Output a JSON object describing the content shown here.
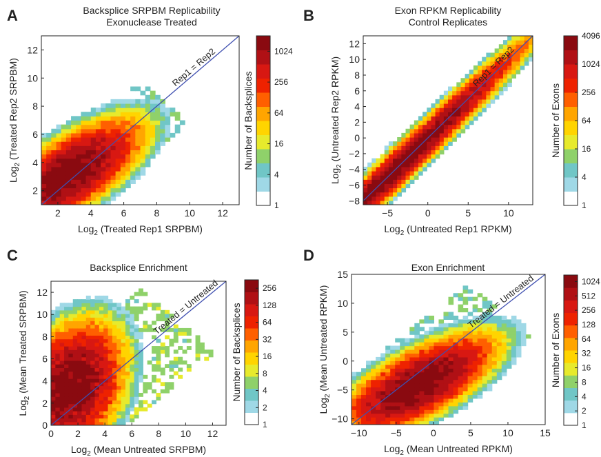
{
  "colormap": [
    "#ffffff",
    "#9fd8e6",
    "#70c6c6",
    "#8fd16a",
    "#e7ea2c",
    "#ffd400",
    "#ffa500",
    "#ff5f00",
    "#ee2200",
    "#d81812",
    "#b01015",
    "#8a0a10"
  ],
  "diagonal_color": "#3f4fb0",
  "chart_data": [
    {
      "panel": "A",
      "type": "heatmap",
      "title": [
        "Backsplice SRPBM Replicability",
        "Exonuclease Treated"
      ],
      "xlabel": "Log2 (Treated Rep1 SRPBM)",
      "ylabel": "Log2 (Treated Rep2 SRPBM)",
      "xlim": [
        1,
        13
      ],
      "ylim": [
        1,
        13
      ],
      "xticks": [
        2,
        4,
        6,
        8,
        10,
        12
      ],
      "yticks": [
        2,
        4,
        6,
        8,
        10,
        12
      ],
      "diagonal_label": "Rep1 = Rep2",
      "colorbar": {
        "label": "Number of Backsplices",
        "ticks": [
          "1",
          "4",
          "16",
          "64",
          "256",
          "1024"
        ],
        "max": 2048
      },
      "density": {
        "center": [
          2.7,
          3.2
        ],
        "spread": [
          1.6,
          1.4
        ],
        "corr": 0.7,
        "peak": 2048,
        "range": 5.5,
        "band": 2.3
      }
    },
    {
      "panel": "B",
      "type": "heatmap",
      "title": [
        "Exon RPKM Replicability",
        "Control Replicates"
      ],
      "xlabel": "Log2 (Untreated Rep1 RPKM)",
      "ylabel": "Log2 (Untreated Rep2 RPKM)",
      "xlim": [
        -8,
        13
      ],
      "ylim": [
        -8.5,
        13
      ],
      "xticks": [
        -5,
        0,
        5,
        10
      ],
      "yticks": [
        -8,
        -6,
        -4,
        -2,
        0,
        2,
        4,
        6,
        8,
        10,
        12
      ],
      "diagonal_label": "Rep1 = Rep2",
      "colorbar": {
        "label": "Number of Exons",
        "ticks": [
          "1",
          "4",
          "16",
          "64",
          "256",
          "1024",
          "4096"
        ],
        "max": 4096
      },
      "density": {
        "center": [
          -3,
          -3
        ],
        "spread": [
          5.5,
          5.5
        ],
        "corr": 0.985,
        "peak": 4096,
        "range": 14,
        "band": 1.6
      }
    },
    {
      "panel": "C",
      "type": "heatmap",
      "title": [
        "Backsplice Enrichment"
      ],
      "xlabel": "Log2 (Mean Untreated SRPBM)",
      "ylabel": "Log2 (Mean Treated SRPBM)",
      "xlim": [
        0,
        13
      ],
      "ylim": [
        0,
        13
      ],
      "xticks": [
        0,
        2,
        4,
        6,
        8,
        10,
        12
      ],
      "yticks": [
        0,
        2,
        4,
        6,
        8,
        10,
        12
      ],
      "diagonal_label": "Treated = Untreated",
      "colorbar": {
        "label": "Number of Backsplices",
        "ticks": [
          "1",
          "2",
          "4",
          "8",
          "16",
          "32",
          "64",
          "128",
          "256"
        ],
        "max": 360
      },
      "density": {
        "center": [
          1.5,
          3.5
        ],
        "spread": [
          1.6,
          2.4
        ],
        "corr": 0.3,
        "peak": 360,
        "range": 7,
        "band": 4
      }
    },
    {
      "panel": "D",
      "type": "heatmap",
      "title": [
        "Exon Enrichment"
      ],
      "xlabel": "Log2 (Mean Untreated RPKM)",
      "ylabel": "Log2 (Mean Untreated RPKM)",
      "xlim": [
        -11,
        15
      ],
      "ylim": [
        -11,
        15
      ],
      "xticks": [
        -10,
        -5,
        0,
        5,
        10,
        15
      ],
      "yticks": [
        -10,
        -5,
        0,
        5,
        10,
        15
      ],
      "diagonal_label": "Treated = Untreated",
      "colorbar": {
        "label": "Number of Exons",
        "ticks": [
          "1",
          "2",
          "4",
          "8",
          "16",
          "32",
          "64",
          "128",
          "256",
          "512",
          "1024"
        ],
        "max": 1400
      },
      "density": {
        "center": [
          -2,
          -4
        ],
        "spread": [
          3.8,
          3.2
        ],
        "corr": 0.7,
        "peak": 1400,
        "range": 12,
        "band": 6
      }
    }
  ]
}
